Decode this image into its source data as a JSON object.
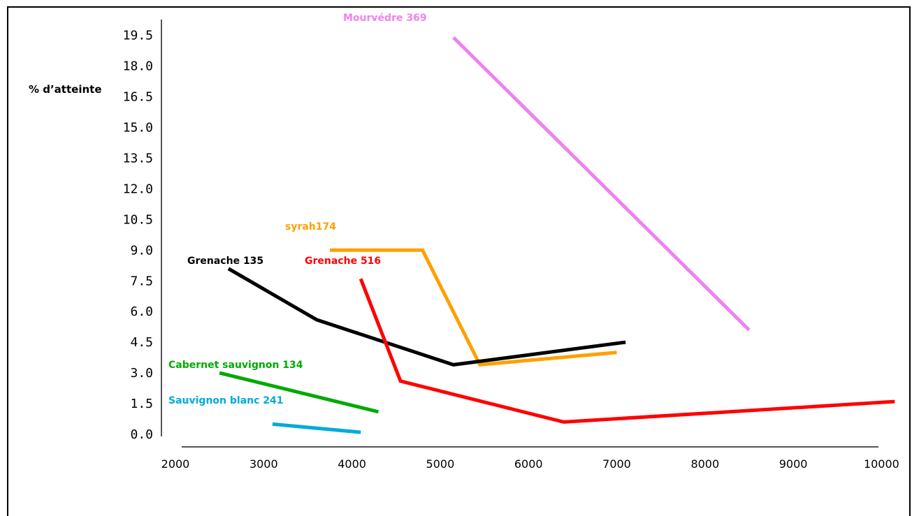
{
  "chart_data": {
    "type": "line",
    "title": "",
    "xlabel": "",
    "ylabel": "% d’atteinte",
    "xlim": [
      2000,
      10000
    ],
    "ylim": [
      0,
      19.5
    ],
    "x_ticks": [
      "2000",
      "3000",
      "4000",
      "5000",
      "6000",
      "7000",
      "8000",
      "9000",
      "10000"
    ],
    "y_ticks": [
      "0.0",
      "1.5",
      "3.0",
      "4.5",
      "6.0",
      "7.5",
      "9.0",
      "10.5",
      "12.0",
      "13.5",
      "15.0",
      "16.5",
      "18.0",
      "19.5"
    ],
    "grid": false,
    "series": [
      {
        "name": "Mourvédre 369",
        "color": "#ee82ee",
        "points": [
          [
            5150,
            19.4
          ],
          [
            8500,
            5.1
          ]
        ]
      },
      {
        "name": "syrah174",
        "color": "#ffa000",
        "points": [
          [
            3750,
            9.0
          ],
          [
            4800,
            9.0
          ],
          [
            5450,
            3.4
          ],
          [
            7000,
            4.0
          ]
        ]
      },
      {
        "name": "Grenache 135",
        "color": "#000000",
        "points": [
          [
            2600,
            8.1
          ],
          [
            3600,
            5.6
          ],
          [
            5150,
            3.4
          ],
          [
            7100,
            4.5
          ]
        ]
      },
      {
        "name": "Grenache 516",
        "color": "#ff0000",
        "points": [
          [
            4100,
            7.6
          ],
          [
            4550,
            2.6
          ],
          [
            6400,
            0.6
          ],
          [
            10150,
            1.6
          ]
        ]
      },
      {
        "name": "Cabernet sauvignon 134",
        "color": "#00aa00",
        "points": [
          [
            2500,
            3.0
          ],
          [
            4300,
            1.1
          ]
        ]
      },
      {
        "name": "Sauvignon blanc  241",
        "color": "#00aadd",
        "points": [
          [
            3100,
            0.5
          ],
          [
            4100,
            0.1
          ]
        ]
      }
    ]
  }
}
